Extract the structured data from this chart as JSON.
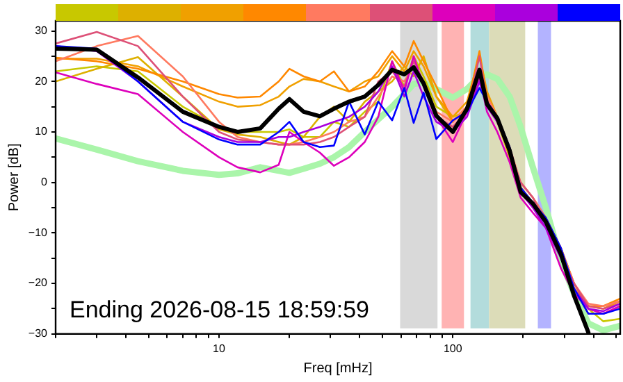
{
  "chart_data": {
    "type": "line",
    "xlabel": "Freq [mHz]",
    "ylabel": "Power [dB]",
    "annotations": [
      "Ending 2026-08-15 18:59:59"
    ],
    "log": "x",
    "legend": false,
    "xlim": [
      2,
      520
    ],
    "ylim": [
      -30,
      32
    ],
    "xticks": [
      {
        "value": 2,
        "label": null
      },
      {
        "value": 3,
        "label": null
      },
      {
        "value": 4,
        "label": null
      },
      {
        "value": 5,
        "label": null
      },
      {
        "value": 6,
        "label": null
      },
      {
        "value": 7,
        "label": null
      },
      {
        "value": 8,
        "label": null
      },
      {
        "value": 9,
        "label": null
      },
      10,
      {
        "value": 20,
        "label": null
      },
      {
        "value": 30,
        "label": null
      },
      {
        "value": 40,
        "label": null
      },
      {
        "value": 50,
        "label": null
      },
      {
        "value": 60,
        "label": null
      },
      {
        "value": 70,
        "label": null
      },
      {
        "value": 80,
        "label": null
      },
      {
        "value": 90,
        "label": null
      },
      100,
      {
        "value": 200,
        "label": null
      },
      {
        "value": 300,
        "label": null
      },
      {
        "value": 400,
        "label": null
      },
      {
        "value": 500,
        "label": null
      }
    ],
    "yticks": [
      -30,
      {
        "value": -25,
        "label": null
      },
      -20,
      {
        "value": -15,
        "label": null
      },
      -10,
      {
        "value": -5,
        "label": null
      },
      0,
      {
        "value": 5,
        "label": null
      },
      10,
      {
        "value": 15,
        "label": null
      },
      20,
      {
        "value": 25,
        "label": null
      },
      30
    ],
    "bands": [
      {
        "axis": "x",
        "from": 59.5,
        "to": 86,
        "color": "#d9d9d9"
      },
      {
        "axis": "x",
        "from": 89.6,
        "to": 111.6,
        "color": "#ffb3b3"
      },
      {
        "axis": "x",
        "from": 119,
        "to": 143,
        "color": "#b3dcdc"
      },
      {
        "axis": "x",
        "from": 143,
        "to": 204,
        "color": "#dcdcb8"
      },
      {
        "axis": "x",
        "from": 231,
        "to": 263,
        "color": "#b3b3ff"
      }
    ],
    "x": [
      2,
      3,
      4.5,
      7,
      10,
      12,
      15,
      18,
      20,
      23,
      27,
      31,
      36,
      42,
      48,
      55,
      62,
      68,
      75,
      85,
      100,
      115,
      130,
      140,
      155,
      175,
      195,
      220,
      250,
      290,
      330,
      380,
      440,
      520
    ],
    "series": [
      {
        "color": "#aaf5aa",
        "values": [
          8.7,
          6.5,
          4.2,
          2.3,
          1.5,
          1.8,
          3,
          2.3,
          1.9,
          2.7,
          3.7,
          5,
          7,
          10,
          12.5,
          15,
          17.5,
          19.5,
          19.8,
          18.5,
          16.8,
          18.5,
          21,
          21.4,
          20.5,
          17,
          11,
          3,
          -5,
          -15.5,
          -22,
          -27.9,
          -29.3,
          -28.4
        ]
      },
      {
        "color": "#c8c800",
        "values": [
          22,
          23,
          22,
          15,
          11,
          10,
          10,
          10,
          10.5,
          9,
          9,
          12,
          11,
          14,
          16,
          24,
          19,
          25,
          21,
          15,
          13,
          14,
          20,
          17,
          13,
          6,
          0,
          -3,
          -7,
          -13,
          -20,
          -25,
          -27.5,
          -27
        ]
      },
      {
        "color": "#ddb000",
        "values": [
          20,
          22.5,
          24.8,
          17,
          10.5,
          9.5,
          9,
          8,
          7.5,
          9,
          13,
          15,
          12,
          16,
          18,
          20,
          23,
          21,
          25,
          17,
          12,
          15,
          21,
          16,
          12,
          5,
          -1,
          -4,
          -8,
          -14,
          -21,
          -26,
          -26,
          -24.5
        ]
      },
      {
        "color": "#f0a000",
        "values": [
          24.5,
          24.5,
          23,
          19,
          16,
          15,
          15.3,
          17,
          19,
          20.5,
          20,
          19,
          18,
          20,
          21,
          25,
          22,
          26,
          23,
          17,
          13,
          16,
          25,
          18,
          13,
          5,
          -1,
          -4,
          -7,
          -13,
          -20,
          -24.5,
          -25,
          -23.5
        ]
      },
      {
        "color": "#ff8800",
        "values": [
          24.7,
          24,
          22.5,
          20,
          17.5,
          16.8,
          17,
          20,
          22.5,
          21,
          20,
          22,
          18,
          19,
          22,
          26,
          23,
          28,
          24,
          19,
          12,
          15,
          26,
          17,
          12,
          6,
          -1,
          -5,
          -8,
          -14,
          -21,
          -24.5,
          -24.5,
          -23
        ]
      },
      {
        "color": "#ff7a60",
        "values": [
          24,
          27,
          29,
          21,
          12,
          9,
          8,
          7.5,
          7.5,
          8,
          9,
          10,
          12,
          13,
          17,
          21,
          20,
          23,
          20,
          14,
          12,
          15,
          22,
          17,
          13,
          7,
          0,
          -3,
          -7,
          -13,
          -20,
          -24,
          -24.5,
          -23.5
        ]
      },
      {
        "color": "#dd5077",
        "values": [
          27.5,
          29.8,
          27,
          17,
          10,
          8.5,
          8,
          7.5,
          7.5,
          7.5,
          8,
          9,
          11,
          13,
          20,
          22,
          19,
          24,
          20,
          13,
          11,
          14,
          25,
          16,
          13,
          6,
          0,
          -3,
          -8,
          -14,
          -20,
          -24.5,
          -25,
          -24
        ]
      },
      {
        "color": "#dd00bb",
        "values": [
          21.8,
          19.5,
          17.5,
          10,
          5,
          3,
          2,
          3.5,
          10,
          8,
          5.9,
          3.3,
          5,
          8,
          13,
          24,
          18,
          25,
          19,
          13,
          8,
          14,
          21,
          14,
          10,
          4,
          -3,
          -6,
          -9,
          -17,
          -22,
          -25,
          -26,
          -24.5
        ]
      },
      {
        "color": "#aa00dd",
        "values": [
          27,
          26,
          20,
          12,
          9,
          8,
          8,
          9,
          9,
          10,
          11,
          12,
          13,
          15,
          18,
          23,
          17,
          22,
          17,
          12,
          10,
          13,
          20,
          15,
          12,
          6,
          -2,
          -5,
          -9,
          -15,
          -21,
          -25,
          -25.5,
          -24
        ]
      },
      {
        "color": "#0000ff",
        "values": [
          27,
          26.5,
          20,
          12,
          8.5,
          7.5,
          7.5,
          10,
          12,
          8,
          7,
          7.3,
          16,
          9.5,
          16,
          12.3,
          18.7,
          11.8,
          17.8,
          8.6,
          12.3,
          14,
          18.7,
          16,
          13,
          7,
          -1,
          -4,
          -7,
          -13,
          -21,
          -26,
          -26,
          -25
        ]
      },
      {
        "color": "#000000",
        "values": [
          26.5,
          26.3,
          20.8,
          14,
          11,
          10,
          10.7,
          14.6,
          16.5,
          14,
          13.1,
          14.6,
          16,
          17,
          19.3,
          22.3,
          21.4,
          22.8,
          19.6,
          13.2,
          10,
          14.6,
          22.3,
          15.5,
          12.7,
          6.3,
          -1.9,
          -4.2,
          -7.8,
          -14.2,
          -22.4,
          -29.7,
          null,
          null
        ]
      }
    ]
  }
}
